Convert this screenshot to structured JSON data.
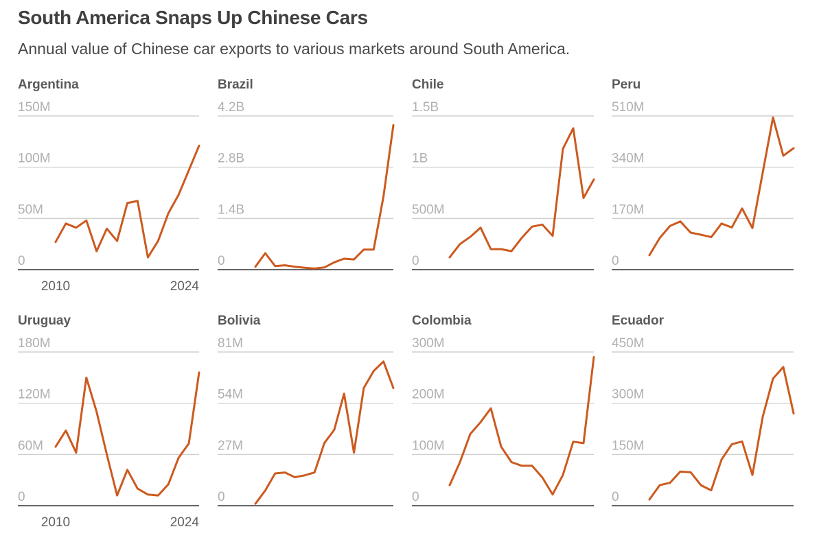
{
  "title": "South America Snaps Up Chinese Cars",
  "subtitle": "Annual value of Chinese car exports to various markets around South America.",
  "colors": {
    "line": "#cc5a1f",
    "grid": "#c8c8c8",
    "baseline": "#333333",
    "tick_text": "#b0b0b0",
    "panel_title": "#5a5a5a",
    "year_text": "#606060"
  },
  "chart_data": [
    {
      "type": "line",
      "title": "Argentina",
      "x_start": 2010,
      "x_end": 2024,
      "x_tick_labels": [
        "2010",
        "2024"
      ],
      "ylim": [
        0,
        150
      ],
      "y_ticks": [
        0,
        50,
        100,
        150
      ],
      "y_tick_labels": [
        "0",
        "50M",
        "100M",
        "150M"
      ],
      "unit": "M",
      "values": [
        27,
        45,
        41,
        48,
        18,
        40,
        28,
        65,
        67,
        12,
        28,
        55,
        73,
        97,
        121
      ]
    },
    {
      "type": "line",
      "title": "Brazil",
      "x_start": 2010,
      "x_end": 2024,
      "x_tick_labels": [],
      "ylim": [
        0,
        4.2
      ],
      "y_ticks": [
        0,
        1.4,
        2.8,
        4.2
      ],
      "y_tick_labels": [
        "0",
        "1.4B",
        "2.8B",
        "4.2B"
      ],
      "unit": "B",
      "values": [
        0.08,
        0.45,
        0.1,
        0.12,
        0.08,
        0.05,
        0.03,
        0.06,
        0.2,
        0.3,
        0.28,
        0.55,
        0.55,
        2.0,
        3.95
      ]
    },
    {
      "type": "line",
      "title": "Chile",
      "x_start": 2010,
      "x_end": 2024,
      "x_tick_labels": [],
      "ylim": [
        0,
        1.5
      ],
      "y_ticks": [
        0,
        0.5,
        1.0,
        1.5
      ],
      "y_tick_labels": [
        "0",
        "500M",
        "1B",
        "1.5B"
      ],
      "unit": "B",
      "values": [
        0.12,
        0.25,
        0.32,
        0.41,
        0.2,
        0.2,
        0.18,
        0.31,
        0.42,
        0.44,
        0.33,
        1.18,
        1.38,
        0.7,
        0.88
      ]
    },
    {
      "type": "line",
      "title": "Peru",
      "x_start": 2010,
      "x_end": 2024,
      "x_tick_labels": [],
      "ylim": [
        0,
        510
      ],
      "y_ticks": [
        0,
        170,
        340,
        510
      ],
      "y_tick_labels": [
        "0",
        "170M",
        "340M",
        "510M"
      ],
      "unit": "M",
      "values": [
        48,
        105,
        145,
        160,
        123,
        116,
        108,
        153,
        140,
        203,
        138,
        322,
        505,
        378,
        403
      ]
    },
    {
      "type": "line",
      "title": "Uruguay",
      "x_start": 2010,
      "x_end": 2024,
      "x_tick_labels": [
        "2010",
        "2024"
      ],
      "ylim": [
        0,
        180
      ],
      "y_ticks": [
        0,
        60,
        120,
        180
      ],
      "y_tick_labels": [
        "0",
        "60M",
        "120M",
        "180M"
      ],
      "unit": "M",
      "values": [
        69,
        88,
        62,
        150,
        110,
        60,
        12,
        42,
        20,
        13,
        12,
        25,
        56,
        73,
        156
      ]
    },
    {
      "type": "line",
      "title": "Bolivia",
      "x_start": 2010,
      "x_end": 2024,
      "x_tick_labels": [],
      "ylim": [
        0,
        81
      ],
      "y_ticks": [
        0,
        27,
        54,
        81
      ],
      "y_tick_labels": [
        "0",
        "27M",
        "54M",
        "81M"
      ],
      "unit": "M",
      "values": [
        1,
        8,
        17,
        17.5,
        15,
        16,
        17.5,
        33,
        40,
        59,
        28,
        62,
        71,
        76,
        62
      ]
    },
    {
      "type": "line",
      "title": "Colombia",
      "x_start": 2010,
      "x_end": 2024,
      "x_tick_labels": [],
      "ylim": [
        0,
        300
      ],
      "y_ticks": [
        0,
        100,
        200,
        300
      ],
      "y_tick_labels": [
        "0",
        "100M",
        "200M",
        "300M"
      ],
      "unit": "M",
      "values": [
        40,
        85,
        140,
        163,
        190,
        115,
        85,
        78,
        78,
        55,
        22,
        60,
        125,
        122,
        290
      ]
    },
    {
      "type": "line",
      "title": "Ecuador",
      "x_start": 2010,
      "x_end": 2024,
      "x_tick_labels": [],
      "ylim": [
        0,
        450
      ],
      "y_ticks": [
        0,
        150,
        300,
        450
      ],
      "y_tick_labels": [
        "0",
        "150M",
        "300M",
        "450M"
      ],
      "unit": "M",
      "values": [
        18,
        60,
        67,
        100,
        98,
        60,
        45,
        135,
        180,
        188,
        90,
        260,
        372,
        406,
        270
      ]
    }
  ]
}
